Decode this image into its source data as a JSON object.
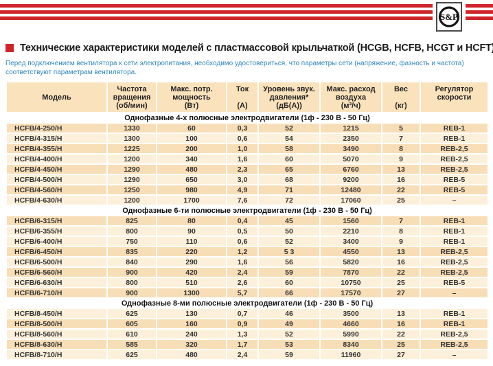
{
  "page": {
    "logo_text": "S&P",
    "title": "Технические характеристики моделей с пластмассовой крыльчаткой (HCGB, HCFB, HCGT и HCFT)",
    "note": "Перед подключением вентилятора к сети электропитания, необходимо удостовериться, что параметры сети (напряжение, фазность и частота) соответствуют параметрам вентилятора."
  },
  "colors": {
    "accent_red": "#ce2429",
    "note_blue": "#2e86be",
    "row_dark": "#f8deb6",
    "row_light": "#fdf0da",
    "header_bg": "#fae2bc",
    "text_dark": "#333333"
  },
  "table": {
    "columns": [
      {
        "label": "Модель",
        "unit": ""
      },
      {
        "label": "Частота\nвращения",
        "unit": "(об/мин)"
      },
      {
        "label": "Макс. потр.\nмощность",
        "unit": "(Вт)"
      },
      {
        "label": "Ток",
        "unit": "(А)"
      },
      {
        "label": "Уровень звук.\nдавления*",
        "unit": "(дБ(А))"
      },
      {
        "label": "Макс. расход\nвоздуха",
        "unit": "(м³/ч)"
      },
      {
        "label": "Вес",
        "unit": "(кг)"
      },
      {
        "label": "Регулятор\nскорости",
        "unit": ""
      }
    ],
    "sections": [
      {
        "header": "Однофазные 4-х полюсные электродвигатели (1ф - 230 В - 50 Гц)",
        "shades": [
          "dark",
          "light",
          "dark",
          "light",
          "dark",
          "light",
          "dark",
          "light"
        ],
        "rows": [
          [
            "HCFB/4-250/H",
            "1330",
            "60",
            "0,3",
            "52",
            "1215",
            "5",
            "REB-1"
          ],
          [
            "HCFB/4-315/H",
            "1300",
            "100",
            "0,6",
            "54",
            "2350",
            "7",
            "REB-1"
          ],
          [
            "HCFB/4-355/H",
            "1225",
            "200",
            "1,0",
            "58",
            "3490",
            "8",
            "REB-2,5"
          ],
          [
            "HCFB/4-400/H",
            "1200",
            "340",
            "1,6",
            "60",
            "5070",
            "9",
            "REB-2,5"
          ],
          [
            "HCFB/4-450/H",
            "1290",
            "480",
            "2,3",
            "65",
            "6760",
            "13",
            "REB-2,5"
          ],
          [
            "HCFB/4-500/H",
            "1290",
            "650",
            "3,0",
            "68",
            "9200",
            "16",
            "REB-5"
          ],
          [
            "HCFB/4-560/H",
            "1250",
            "980",
            "4,9",
            "71",
            "12480",
            "22",
            "REB-5"
          ],
          [
            "HCFB/4-630/H",
            "1200",
            "1700",
            "7,6",
            "72",
            "17060",
            "25",
            "–"
          ]
        ]
      },
      {
        "header": "Однофазные 6-ти полюсные электродвигатели (1ф - 230 В - 50 Гц)",
        "shades": [
          "dark",
          "light",
          "light",
          "dark",
          "light",
          "dark",
          "light",
          "dark"
        ],
        "rows": [
          [
            "HCFB/6-315/H",
            "825",
            "80",
            "0,4",
            "45",
            "1560",
            "7",
            "REB-1"
          ],
          [
            "HCFB/6-355/H",
            "800",
            "90",
            "0,5",
            "50",
            "2210",
            "8",
            "REB-1"
          ],
          [
            "HCFB/6-400/H",
            "750",
            "110",
            "0,6",
            "52",
            "3400",
            "9",
            "REB-1"
          ],
          [
            "HCFB/6-450/H",
            "835",
            "220",
            "1,2",
            "5 3",
            "4550",
            "13",
            "REB-2,5"
          ],
          [
            "HCFB/6-500/H",
            "840",
            "290",
            "1,6",
            "56",
            "5820",
            "16",
            "REB-2,5"
          ],
          [
            "HCFB/6-560/H",
            "900",
            "420",
            "2,4",
            "59",
            "7870",
            "22",
            "REB-2,5"
          ],
          [
            "HCFB/6-630/H",
            "800",
            "510",
            "2,6",
            "60",
            "10750",
            "25",
            "REB-5"
          ],
          [
            "HCFB/6-710/H",
            "900",
            "1300",
            "5,7",
            "66",
            "17570",
            "27",
            "–"
          ]
        ]
      },
      {
        "header": "Однофазные 8-ми полюсные электродвигатели (1ф - 230 В - 50 Гц)",
        "shades": [
          "light",
          "dark",
          "light",
          "dark",
          "light"
        ],
        "rows": [
          [
            "HCFB/8-450/H",
            "625",
            "130",
            "0,7",
            "46",
            "3500",
            "13",
            "REB-1"
          ],
          [
            "HCFB/8-500/H",
            "605",
            "160",
            "0,9",
            "49",
            "4660",
            "16",
            "REB-1"
          ],
          [
            "HCFB/8-560/H",
            "610",
            "240",
            "1,3",
            "52",
            "5990",
            "22",
            "REB-2,5"
          ],
          [
            "HCFB/8-630/H",
            "585",
            "320",
            "1,7",
            "53",
            "8340",
            "25",
            "REB-2,5"
          ],
          [
            "HCFB/8-710/H",
            "625",
            "480",
            "2,4",
            "59",
            "11960",
            "27",
            "–"
          ]
        ]
      }
    ]
  }
}
